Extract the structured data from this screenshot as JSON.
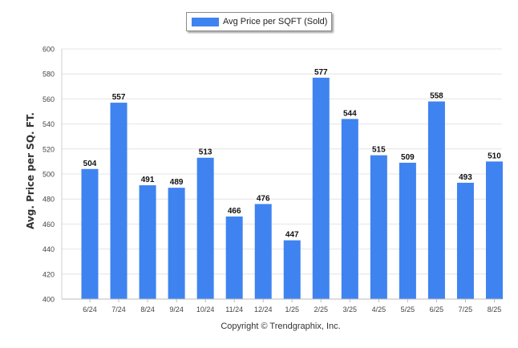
{
  "chart_data": {
    "type": "bar",
    "legend": [
      "Avg Price per SQFT (Sold)"
    ],
    "ylabel": "Avg. Price per SQ. FT.",
    "xlabel": "",
    "ylim": [
      400,
      600
    ],
    "yticks": [
      400,
      420,
      440,
      460,
      480,
      500,
      520,
      540,
      560,
      580,
      600
    ],
    "grid": true,
    "legend_position": "top-center",
    "categories": [
      "6/24",
      "7/24",
      "8/24",
      "9/24",
      "10/24",
      "11/24",
      "12/24",
      "1/25",
      "2/25",
      "3/25",
      "4/25",
      "5/25",
      "6/25",
      "7/25",
      "8/25"
    ],
    "series": [
      {
        "name": "Avg Price per SQFT (Sold)",
        "values": [
          504,
          557,
          491,
          489,
          513,
          466,
          476,
          447,
          577,
          544,
          515,
          509,
          558,
          493,
          510
        ]
      }
    ],
    "bar_color": "#3f83f0"
  },
  "footer": {
    "copyright": "Copyright © Trendgraphix, Inc."
  }
}
